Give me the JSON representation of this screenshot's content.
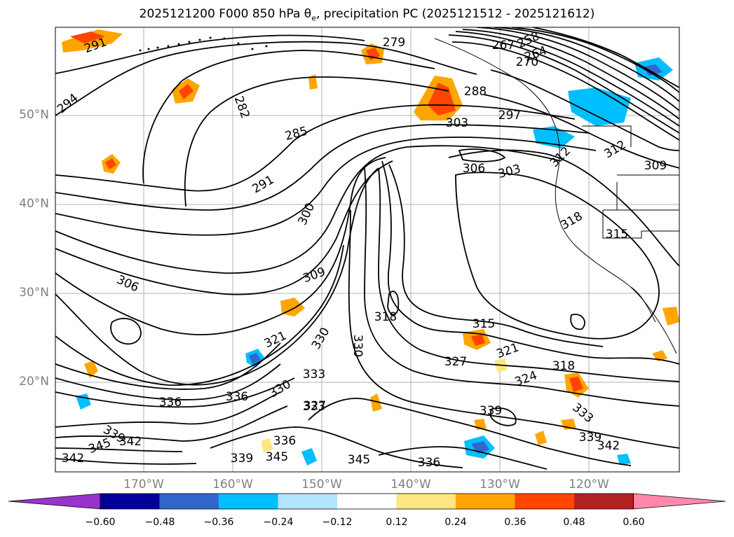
{
  "title": "2025121200 F000 850 hPa θ",
  "title_sub": "e",
  "title_rest": ", precipitation PC (2025121512 - 2025121612)",
  "latitude_labels": [
    "50°N",
    "40°N",
    "30°N",
    "20°N"
  ],
  "longitude_labels": [
    "170°W",
    "160°W",
    "150°W",
    "140°W",
    "130°W",
    "120°W"
  ],
  "contour_labels": [
    "291",
    "294",
    "282",
    "279",
    "258",
    "264",
    "267",
    "270",
    "288",
    "297",
    "303",
    "285",
    "291",
    "300",
    "306",
    "303",
    "306",
    "309",
    "312",
    "312",
    "309",
    "318",
    "315",
    "318",
    "315",
    "321",
    "330",
    "330",
    "333",
    "321",
    "324",
    "318",
    "327",
    "336",
    "333",
    "330",
    "336",
    "327",
    "339",
    "333",
    "339",
    "342",
    "345",
    "339",
    "345",
    "336",
    "342",
    "345",
    "342",
    "336",
    "339"
  ],
  "colorbar": {
    "ticks": [
      "−0.60",
      "−0.48",
      "−0.36",
      "−0.24",
      "−0.12",
      "0.12",
      "0.24",
      "0.36",
      "0.48",
      "0.60"
    ],
    "colors": [
      "#9933cc",
      "#000099",
      "#3366cc",
      "#00bfff",
      "#b3e5ff",
      "#ffffff",
      "#ffe680",
      "#ffa500",
      "#ff4500",
      "#b22222",
      "#ff88aa"
    ]
  },
  "colors": {
    "contour": "#000000",
    "coast": "#000000",
    "grid": "#b0b0b0",
    "axis_label": "#7f7f7f"
  }
}
